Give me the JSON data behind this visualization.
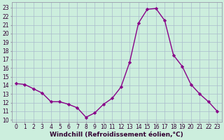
{
  "x": [
    0,
    1,
    2,
    3,
    4,
    5,
    6,
    7,
    8,
    9,
    10,
    11,
    12,
    13,
    14,
    15,
    16,
    17,
    18,
    19,
    20,
    21,
    22,
    23
  ],
  "y": [
    14.2,
    14.1,
    13.6,
    13.1,
    12.1,
    12.1,
    11.8,
    11.4,
    10.3,
    10.8,
    11.8,
    12.5,
    13.8,
    16.7,
    21.2,
    22.8,
    22.9,
    21.5,
    17.5,
    16.2,
    14.1,
    13.0,
    12.1,
    11.0
  ],
  "line_color": "#880088",
  "marker": "D",
  "markersize": 2.2,
  "linewidth": 1.0,
  "bg_color": "#cceedd",
  "grid_color": "#aabbcc",
  "xlabel": "Windchill (Refroidissement éolien,°C)",
  "xlabel_fontsize": 6.5,
  "ylabel_ticks": [
    10,
    11,
    12,
    13,
    14,
    15,
    16,
    17,
    18,
    19,
    20,
    21,
    22,
    23
  ],
  "xlim": [
    -0.5,
    23.5
  ],
  "ylim": [
    9.8,
    23.6
  ],
  "tick_fontsize": 5.5,
  "xticks": [
    0,
    1,
    2,
    3,
    4,
    5,
    6,
    7,
    8,
    9,
    10,
    11,
    12,
    13,
    14,
    15,
    16,
    17,
    18,
    19,
    20,
    21,
    22,
    23
  ]
}
